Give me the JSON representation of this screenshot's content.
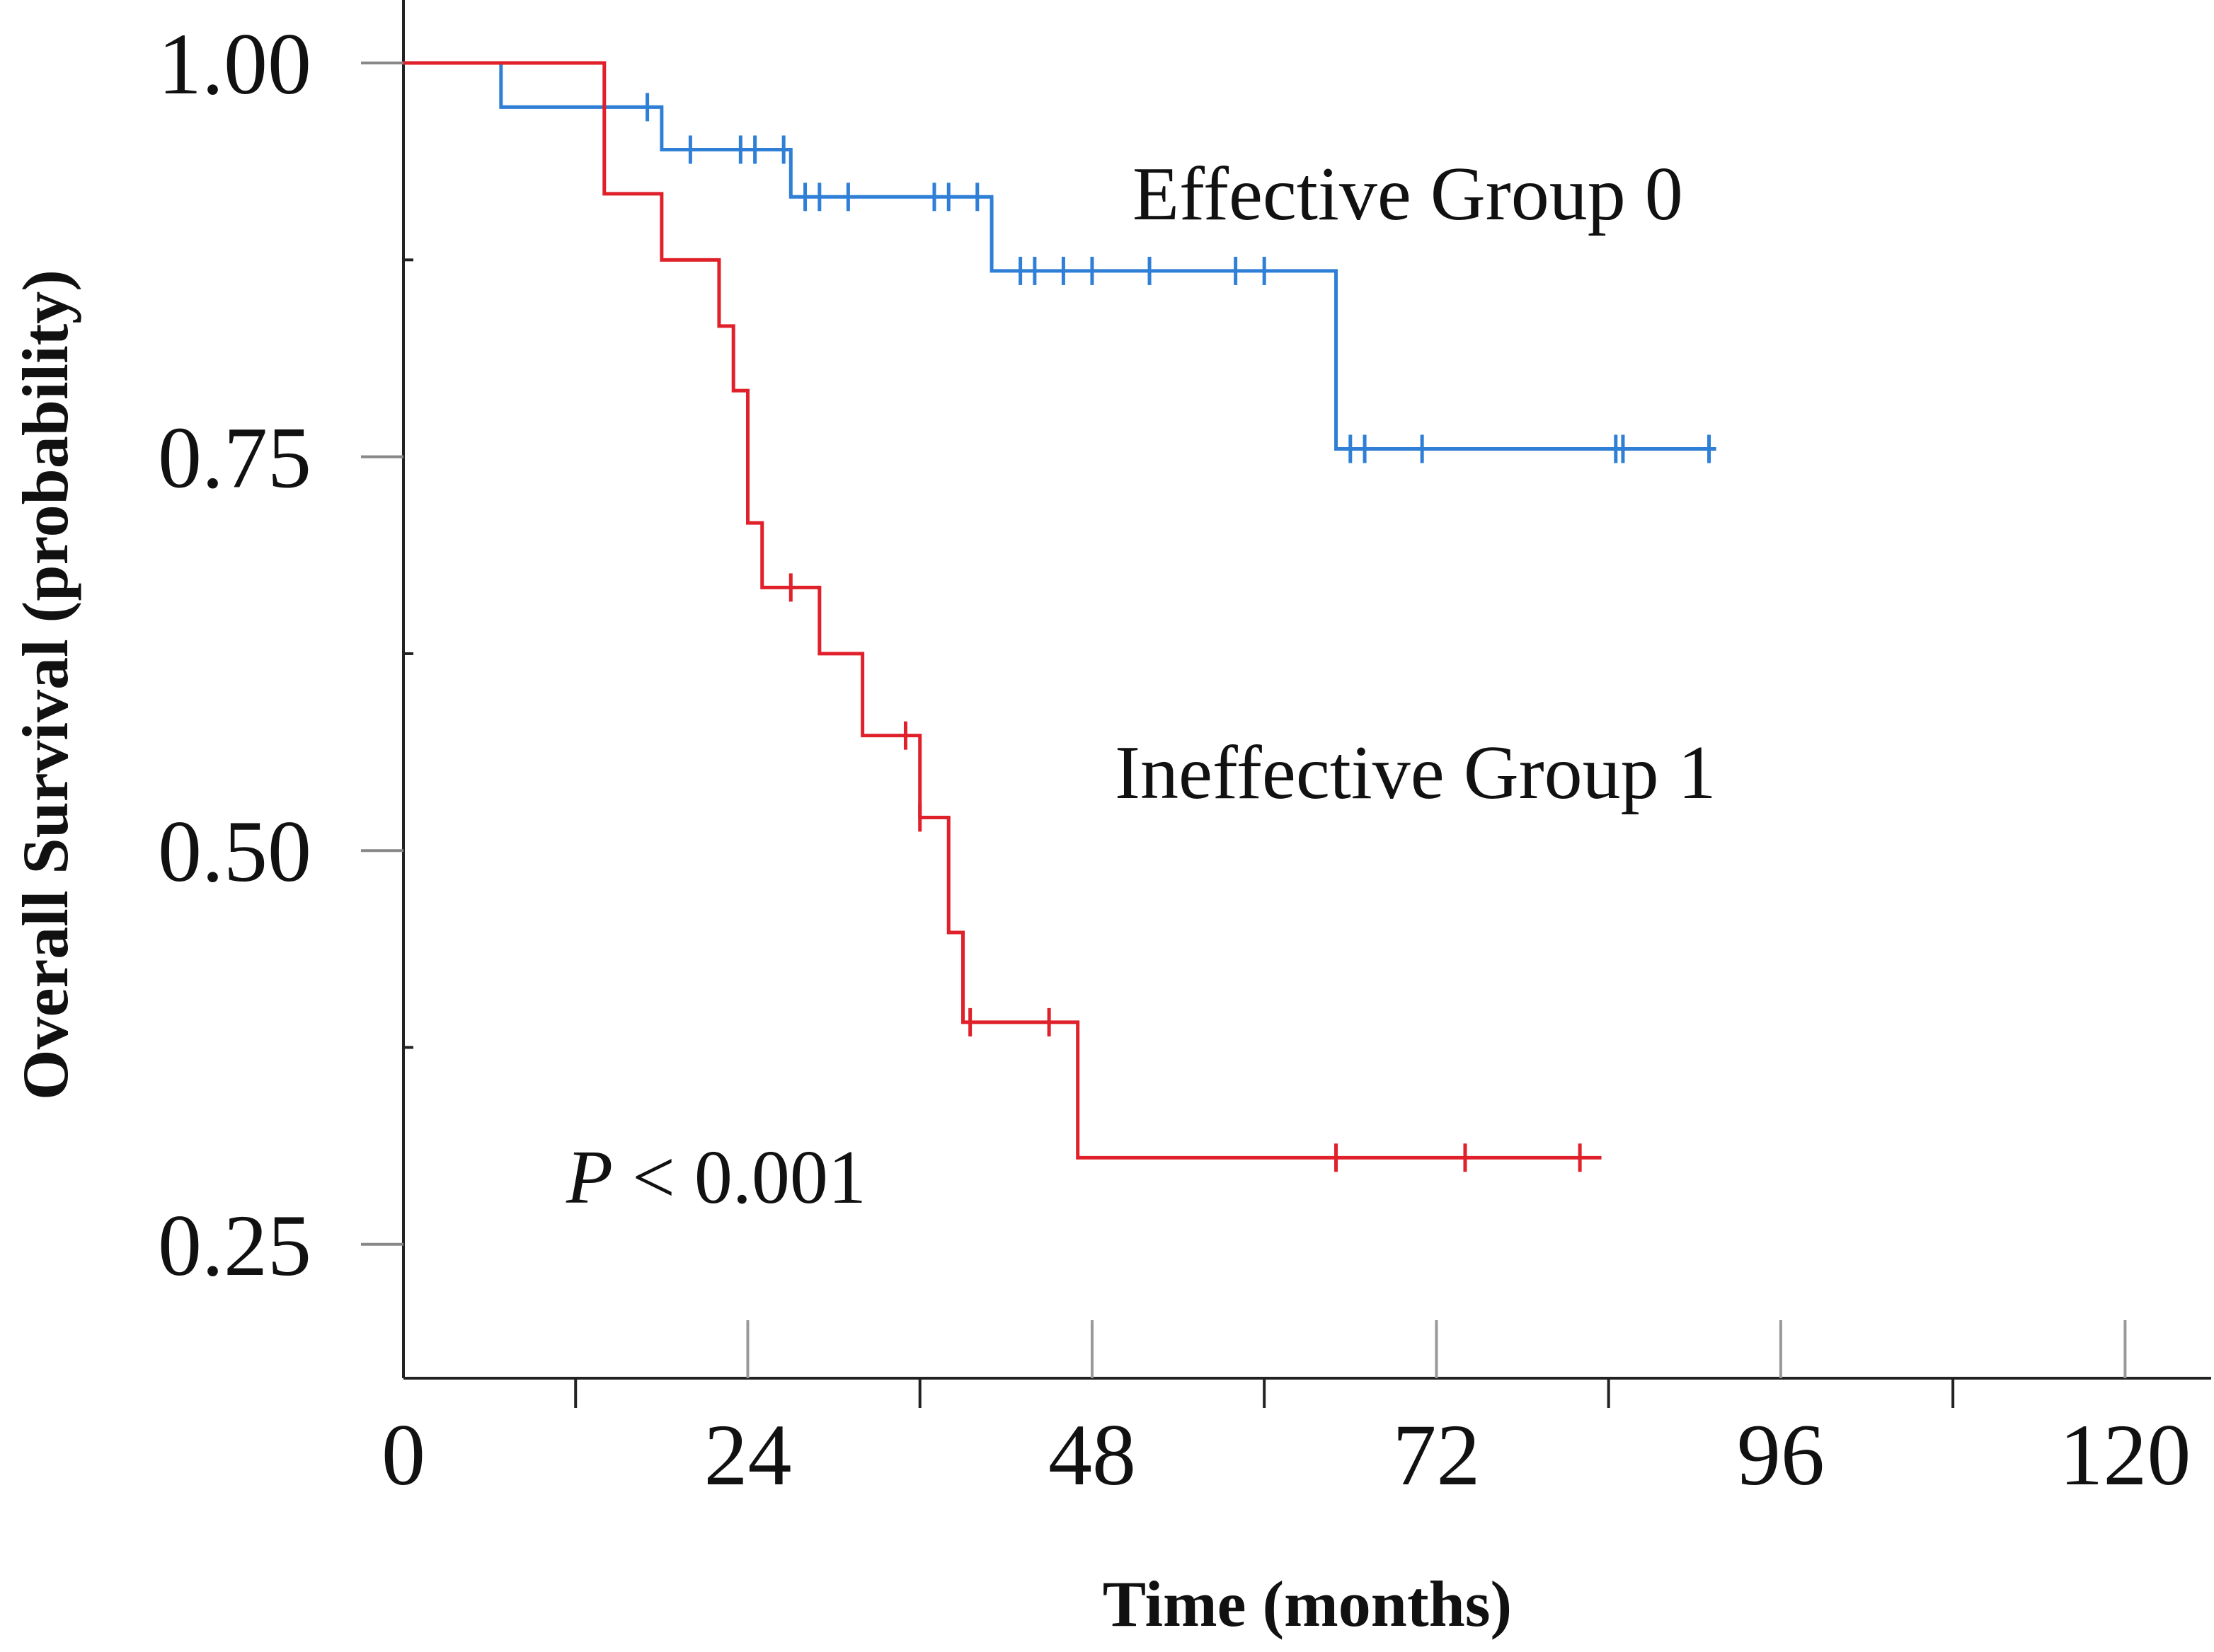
{
  "chart_data": {
    "type": "line",
    "subtype": "kaplan-meier-step",
    "title": "",
    "xlabel": "Time (months)",
    "ylabel": "Overall Survival (probability)",
    "xlim": [
      0,
      126
    ],
    "ylim": [
      0.165,
      1.04
    ],
    "x_ticks": [
      0,
      24,
      48,
      72,
      96,
      120
    ],
    "x_tick_labels": [
      "0",
      "24",
      "48",
      "72",
      "96",
      "120"
    ],
    "x_minor_ticks": [
      12,
      36,
      60,
      84,
      108
    ],
    "y_ticks": [
      0.25,
      0.5,
      0.75,
      1.0
    ],
    "y_tick_labels": [
      "0.25",
      "0.50",
      "0.75",
      "1.00"
    ],
    "y_minor_ticks": [
      0.375,
      0.625,
      0.875
    ],
    "grid": false,
    "series": [
      {
        "name": "Effective Group 0",
        "color": "#2f7fd6",
        "steps": [
          [
            0,
            1.0
          ],
          [
            6.8,
            0.972
          ],
          [
            18,
            0.945
          ],
          [
            27,
            0.915
          ],
          [
            41,
            0.868
          ],
          [
            65,
            0.755
          ],
          [
            91.5,
            0.755
          ]
        ],
        "censored": [
          [
            17,
            0.972
          ],
          [
            20,
            0.945
          ],
          [
            23.5,
            0.945
          ],
          [
            24.5,
            0.945
          ],
          [
            26.5,
            0.945
          ],
          [
            28,
            0.915
          ],
          [
            29,
            0.915
          ],
          [
            31,
            0.915
          ],
          [
            37,
            0.915
          ],
          [
            38,
            0.915
          ],
          [
            40,
            0.915
          ],
          [
            43,
            0.868
          ],
          [
            44,
            0.868
          ],
          [
            46,
            0.868
          ],
          [
            48,
            0.868
          ],
          [
            52,
            0.868
          ],
          [
            58,
            0.868
          ],
          [
            60,
            0.868
          ],
          [
            66,
            0.755
          ],
          [
            67,
            0.755
          ],
          [
            71,
            0.755
          ],
          [
            84.5,
            0.755
          ],
          [
            85,
            0.755
          ],
          [
            91,
            0.755
          ]
        ]
      },
      {
        "name": "Ineffective Group 1",
        "color": "#e0202a",
        "steps": [
          [
            0,
            1.0
          ],
          [
            14,
            0.917
          ],
          [
            18,
            0.875
          ],
          [
            22,
            0.833
          ],
          [
            23,
            0.792
          ],
          [
            24,
            0.708
          ],
          [
            25,
            0.667
          ],
          [
            29,
            0.625
          ],
          [
            32,
            0.573
          ],
          [
            36,
            0.521
          ],
          [
            38,
            0.448
          ],
          [
            39,
            0.391
          ],
          [
            47,
            0.305
          ],
          [
            83.5,
            0.305
          ]
        ],
        "censored": [
          [
            27,
            0.667
          ],
          [
            35,
            0.573
          ],
          [
            36,
            0.521
          ],
          [
            39.5,
            0.391
          ],
          [
            45,
            0.391
          ],
          [
            65,
            0.305
          ],
          [
            74,
            0.305
          ],
          [
            82,
            0.305
          ]
        ]
      }
    ],
    "annotations": {
      "effective_label": "Effective Group 0",
      "ineffective_label": "Ineffective Group 1",
      "p_symbol": "P",
      "p_rest": " < 0.001"
    }
  }
}
